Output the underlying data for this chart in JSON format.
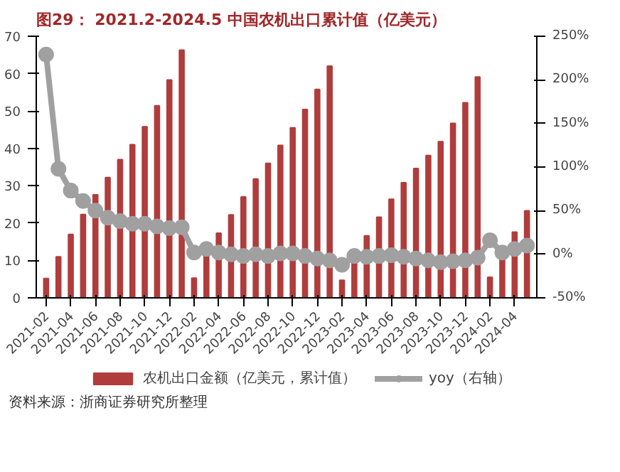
{
  "chart_data": {
    "type": "bar",
    "title": "图29：  2021.2-2024.5 中国农机出口累计值（亿美元）",
    "categories": [
      "2021-02",
      null,
      "2021-04",
      null,
      "2021-06",
      null,
      "2021-08",
      null,
      "2021-10",
      null,
      "2021-12",
      null,
      "2022-02",
      null,
      "2022-04",
      null,
      "2022-06",
      null,
      "2022-08",
      null,
      "2022-10",
      null,
      "2022-12",
      null,
      "2023-02",
      null,
      "2023-04",
      null,
      "2023-06",
      null,
      "2023-08",
      null,
      "2023-10",
      null,
      "2023-12",
      null,
      "2024-02",
      null,
      "2024-04",
      null
    ],
    "series": [
      {
        "name": "农机出口金额（亿美元，累计值）",
        "color": "#b03c3c",
        "values": [
          5.2,
          11,
          17,
          22.3,
          27.6,
          32.2,
          37,
          41,
          45.8,
          51.4,
          58.3,
          66.3,
          5.3,
          11.8,
          17.3,
          22.2,
          27,
          31.8,
          36,
          40.8,
          45.5,
          50.4,
          55.8,
          62,
          4.7,
          10.5,
          16.6,
          21.6,
          26.4,
          30.8,
          34.6,
          38.1,
          41.8,
          46.7,
          52.2,
          59.1,
          5.5,
          11.5,
          17.6,
          23.3
        ]
      },
      {
        "name": "yoy（右轴）",
        "type": "line",
        "axis": "y2",
        "color": "#a0a0a0",
        "values": [
          229,
          98,
          73,
          61,
          50,
          42,
          38,
          35,
          35,
          32,
          30,
          31,
          2,
          6,
          2,
          0,
          -2,
          0,
          -2,
          1,
          1,
          -2,
          -5,
          -7,
          -12,
          -2,
          -3,
          -2,
          -1,
          -3,
          -5,
          -7,
          -9,
          -8,
          -7,
          -4,
          16,
          2,
          6,
          10
        ]
      }
    ],
    "ylim": [
      0,
      70
    ],
    "yticks": [
      0,
      10,
      20,
      30,
      40,
      50,
      60,
      70
    ],
    "y2lim": [
      -50,
      250
    ],
    "y2ticks": [
      {
        "value": -50,
        "label": "-50%"
      },
      {
        "value": 0,
        "label": "0%"
      },
      {
        "value": 50,
        "label": "50%"
      },
      {
        "value": 100,
        "label": "100%"
      },
      {
        "value": 150,
        "label": "150%"
      },
      {
        "value": 200,
        "label": "200%"
      },
      {
        "value": 250,
        "label": "250%"
      }
    ],
    "marker": "circle",
    "line_style": "solid",
    "grid": false,
    "legend": "bottom",
    "annotations": [
      "资料来源：浙商证券研究所整理"
    ]
  }
}
